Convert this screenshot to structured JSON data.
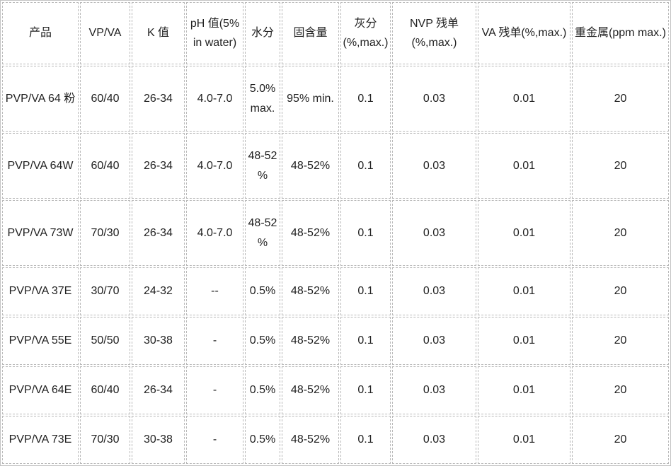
{
  "table": {
    "columns": [
      {
        "label": "产品"
      },
      {
        "label": "VP/VA"
      },
      {
        "label": "K 值"
      },
      {
        "label": "pH 值(5% in water)"
      },
      {
        "label": "水分"
      },
      {
        "label": "固含量"
      },
      {
        "label": "灰分 (%,max.)"
      },
      {
        "label": "NVP 残单 (%,max.)"
      },
      {
        "label": "VA 残单(%,max.)"
      },
      {
        "label": "重金属(ppm max.)"
      }
    ],
    "rows": [
      [
        "PVP/VA 64 粉",
        "60/40",
        "26-34",
        "4.0-7.0",
        "5.0% max.",
        "95% min.",
        "0.1",
        "0.03",
        "0.01",
        "20"
      ],
      [
        "PVP/VA 64W",
        "60/40",
        "26-34",
        "4.0-7.0",
        "48-52 %",
        "48-52%",
        "0.1",
        "0.03",
        "0.01",
        "20"
      ],
      [
        "PVP/VA 73W",
        "70/30",
        "26-34",
        "4.0-7.0",
        "48-52 %",
        "48-52%",
        "0.1",
        "0.03",
        "0.01",
        "20"
      ],
      [
        "PVP/VA 37E",
        "30/70",
        "24-32",
        "--",
        "0.5%",
        "48-52%",
        "0.1",
        "0.03",
        "0.01",
        "20"
      ],
      [
        "PVP/VA 55E",
        "50/50",
        "30-38",
        "-",
        "0.5%",
        "48-52%",
        "0.1",
        "0.03",
        "0.01",
        "20"
      ],
      [
        "PVP/VA 64E",
        "60/40",
        "26-34",
        "-",
        "0.5%",
        "48-52%",
        "0.1",
        "0.03",
        "0.01",
        "20"
      ],
      [
        "PVP/VA 73E",
        "70/30",
        "30-38",
        "-",
        "0.5%",
        "48-52%",
        "0.1",
        "0.03",
        "0.01",
        "20"
      ]
    ]
  },
  "colors": {
    "background": "#ffffff",
    "cell_border": "#b9b9b9",
    "outer_border": "#c3c3c3",
    "text": "#212121"
  }
}
